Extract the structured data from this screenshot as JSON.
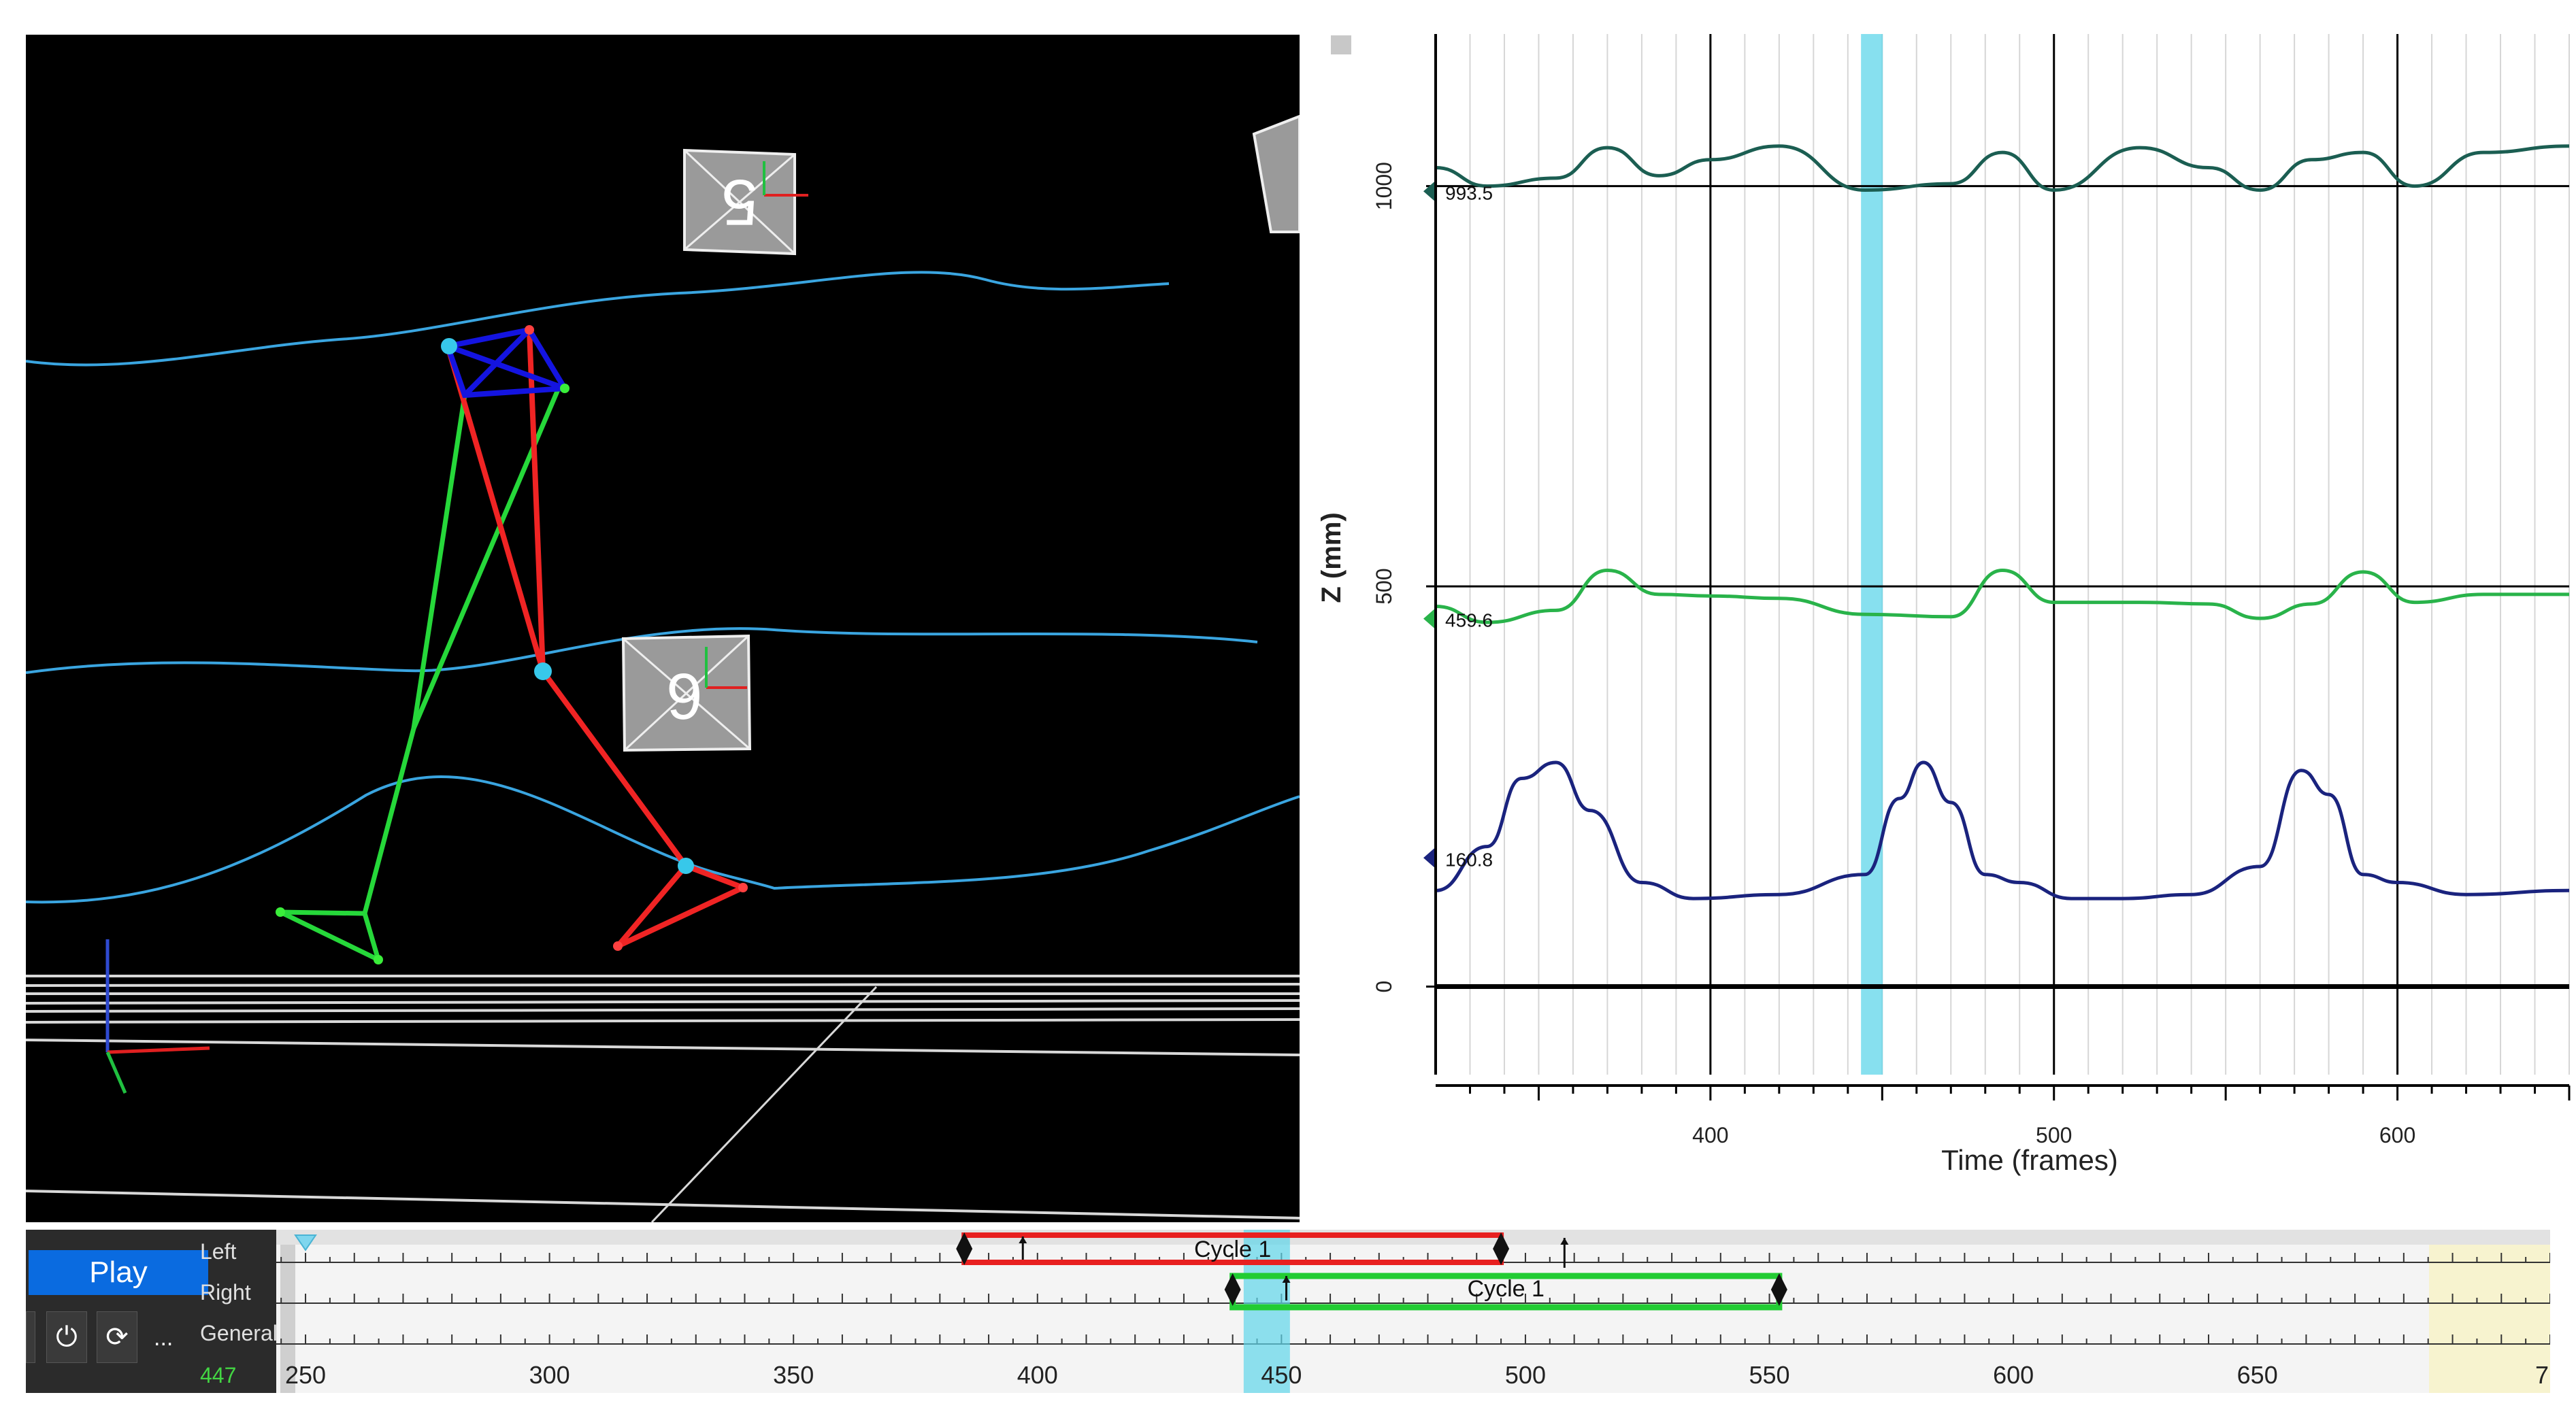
{
  "viewport": {
    "marker_labels": [
      "5",
      "6"
    ]
  },
  "plot": {
    "y_axis_label": "Z (mm)",
    "x_axis_label": "Time (frames)",
    "y_ticks": [
      "1000",
      "500",
      "0"
    ],
    "x_ticks": [
      "400",
      "500",
      "600"
    ],
    "series_readouts": [
      "993.5",
      "459.6",
      "160.8"
    ],
    "colors": {
      "top_series": "#1b5e52",
      "mid_series": "#29b34a",
      "low_series": "#1a237e",
      "time_cursor": "#5fd6ea"
    }
  },
  "chart_data": {
    "type": "line",
    "xlabel": "Time (frames)",
    "ylabel": "Z (mm)",
    "xlim": [
      320,
      650
    ],
    "ylim": [
      -110,
      1190
    ],
    "grid": true,
    "cursor_frame": 447,
    "series": [
      {
        "x": [
          320,
          335,
          355,
          370,
          385,
          400,
          420,
          445,
          470,
          485,
          500,
          525,
          545,
          560,
          575,
          590,
          605,
          625,
          650
        ],
        "values": [
          1023,
          1000,
          1010,
          1048,
          1013,
          1033,
          1050,
          995,
          1003,
          1042,
          995,
          1048,
          1023,
          995,
          1033,
          1042,
          1000,
          1042,
          1050
        ]
      },
      {
        "x": [
          320,
          335,
          355,
          370,
          385,
          400,
          420,
          445,
          470,
          485,
          500,
          525,
          545,
          560,
          575,
          590,
          605,
          625,
          650
        ],
        "values": [
          475,
          455,
          470,
          520,
          490,
          488,
          485,
          465,
          462,
          520,
          480,
          480,
          478,
          460,
          478,
          518,
          480,
          490,
          490
        ]
      },
      {
        "x": [
          320,
          335,
          345,
          355,
          365,
          380,
          395,
          420,
          445,
          455,
          462,
          470,
          480,
          490,
          505,
          520,
          540,
          560,
          572,
          580,
          590,
          600,
          620,
          650
        ],
        "values": [
          120,
          175,
          260,
          280,
          220,
          130,
          110,
          115,
          140,
          235,
          280,
          230,
          140,
          130,
          110,
          110,
          115,
          150,
          270,
          240,
          140,
          130,
          115,
          120
        ]
      }
    ]
  },
  "controls": {
    "play_label": "Play",
    "left_label": "Left",
    "right_label": "Right",
    "general_label": "General",
    "current_frame": "447",
    "more_label": "..."
  },
  "timeline": {
    "ticks": [
      "250",
      "300",
      "350",
      "400",
      "450",
      "500",
      "550",
      "600",
      "650",
      "7"
    ],
    "left_cycle_label": "Cycle 1",
    "right_cycle_label": "Cycle 1",
    "left_cycle": {
      "start": 385,
      "end": 495
    },
    "right_cycle": {
      "start": 440,
      "end": 552
    }
  }
}
